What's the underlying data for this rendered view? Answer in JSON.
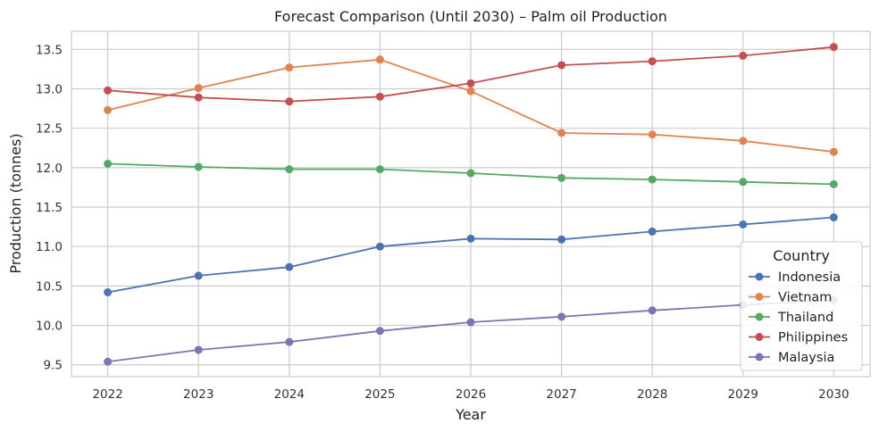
{
  "chart_data": {
    "type": "line",
    "title": "Forecast Comparison (Until 2030) – Palm oil Production",
    "xlabel": "Year",
    "ylabel": "Production (tonnes)",
    "x": [
      2022,
      2023,
      2024,
      2025,
      2026,
      2027,
      2028,
      2029,
      2030
    ],
    "x_tick_labels": [
      "2022",
      "2023",
      "2024",
      "2025",
      "2026",
      "2027",
      "2028",
      "2029",
      "2030"
    ],
    "y_ticks": [
      9.5,
      10.0,
      10.5,
      11.0,
      11.5,
      12.0,
      12.5,
      13.0,
      13.5
    ],
    "y_tick_labels": [
      "9.5",
      "10.0",
      "10.5",
      "11.0",
      "11.5",
      "12.0",
      "12.5",
      "13.0",
      "13.5"
    ],
    "xlim": [
      2021.6,
      2030.4
    ],
    "ylim": [
      9.35,
      13.73
    ],
    "grid": true,
    "legend": {
      "title": "Country",
      "placement": "lower-right"
    },
    "series": [
      {
        "name": "Indonesia",
        "color": "#4c72b0",
        "values": [
          10.42,
          10.63,
          10.74,
          11.0,
          11.1,
          11.09,
          11.19,
          11.28,
          11.37
        ]
      },
      {
        "name": "Vietnam",
        "color": "#dd8452",
        "values": [
          12.73,
          13.01,
          13.27,
          13.37,
          12.97,
          12.44,
          12.42,
          12.34,
          12.2
        ]
      },
      {
        "name": "Thailand",
        "color": "#55a868",
        "values": [
          12.05,
          12.01,
          11.98,
          11.98,
          11.93,
          11.87,
          11.85,
          11.82,
          11.79
        ]
      },
      {
        "name": "Philippines",
        "color": "#c44e52",
        "values": [
          12.98,
          12.89,
          12.84,
          12.9,
          13.07,
          13.3,
          13.35,
          13.42,
          13.53
        ]
      },
      {
        "name": "Malaysia",
        "color": "#8172b3",
        "values": [
          9.54,
          9.69,
          9.79,
          9.93,
          10.04,
          10.11,
          10.19,
          10.26,
          10.32
        ]
      }
    ]
  }
}
